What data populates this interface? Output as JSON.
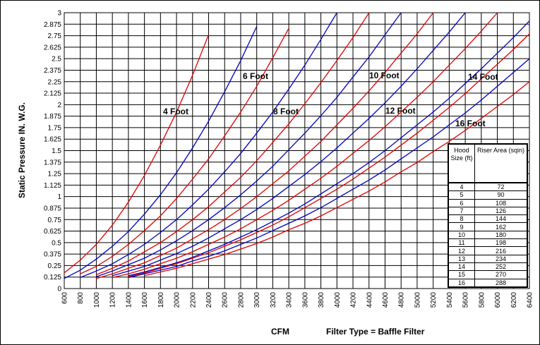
{
  "chart_data": {
    "type": "line",
    "ylabel": "Static Pressure IN. W.G.",
    "xlabel": "CFM",
    "subtitle": "Filter Type = Baffle Filter",
    "x": [
      600,
      800,
      1000,
      1200,
      1400,
      1600,
      1800,
      2000,
      2200,
      2400,
      2600,
      2800,
      3000,
      3200,
      3400,
      3600,
      3800,
      4000,
      4200,
      4400,
      4600,
      4800,
      5000,
      5200,
      5400,
      5600,
      5800,
      6000,
      6200,
      6400
    ],
    "xlim": [
      600,
      6400
    ],
    "xticks": [
      600,
      800,
      1000,
      1200,
      1400,
      1600,
      1800,
      2000,
      2200,
      2400,
      2600,
      2800,
      3000,
      3200,
      3400,
      3600,
      3800,
      4000,
      4200,
      4400,
      4600,
      4800,
      5000,
      5200,
      5400,
      5600,
      5800,
      6000,
      6200,
      6400
    ],
    "ylim": [
      0,
      3
    ],
    "yticks": [
      0,
      0.125,
      0.25,
      0.375,
      0.5,
      0.625,
      0.75,
      0.875,
      1,
      1.125,
      1.25,
      1.375,
      1.5,
      1.625,
      1.75,
      1.875,
      2,
      2.125,
      2.25,
      2.375,
      2.5,
      2.625,
      2.75,
      2.875,
      3
    ],
    "grid": true,
    "series": [
      {
        "color": "#e00000",
        "values": [
          0.17,
          0.31,
          0.48,
          0.69,
          0.94,
          1.23,
          1.56,
          1.92,
          2.32,
          2.76,
          null,
          null,
          null,
          null,
          null,
          null,
          null,
          null,
          null,
          null,
          null,
          null,
          null,
          null,
          null,
          null,
          null,
          null,
          null,
          null
        ]
      },
      {
        "color": "#0000c0",
        "values": [
          0.11,
          0.2,
          0.32,
          0.46,
          0.62,
          0.81,
          1.02,
          1.26,
          1.53,
          1.82,
          2.14,
          2.48,
          2.85,
          null,
          null,
          null,
          null,
          null,
          null,
          null,
          null,
          null,
          null,
          null,
          null,
          null,
          null,
          null,
          null,
          null
        ]
      },
      {
        "color": "#e00000",
        "values": [
          null,
          0.16,
          0.24,
          0.35,
          0.48,
          0.63,
          0.79,
          0.98,
          1.19,
          1.41,
          1.66,
          1.92,
          2.2,
          2.51,
          2.83,
          null,
          null,
          null,
          null,
          null,
          null,
          null,
          null,
          null,
          null,
          null,
          null,
          null,
          null,
          null
        ]
      },
      {
        "color": "#0000c0",
        "values": [
          null,
          0.12,
          0.19,
          0.27,
          0.37,
          0.48,
          0.61,
          0.75,
          0.91,
          1.08,
          1.27,
          1.47,
          1.69,
          1.92,
          2.17,
          2.43,
          2.71,
          3.0,
          null,
          null,
          null,
          null,
          null,
          null,
          null,
          null,
          null,
          null,
          null,
          null
        ]
      },
      {
        "color": "#e00000",
        "values": [
          null,
          null,
          0.15,
          0.22,
          0.3,
          0.4,
          0.5,
          0.62,
          0.75,
          0.89,
          1.05,
          1.21,
          1.39,
          1.59,
          1.79,
          2.01,
          2.24,
          2.48,
          2.73,
          3.0,
          null,
          null,
          null,
          null,
          null,
          null,
          null,
          null,
          null,
          null
        ]
      },
      {
        "color": "#0000c0",
        "values": [
          null,
          null,
          0.13,
          0.19,
          0.26,
          0.33,
          0.42,
          0.52,
          0.63,
          0.75,
          0.88,
          1.02,
          1.17,
          1.33,
          1.51,
          1.69,
          1.88,
          2.08,
          2.3,
          2.52,
          2.76,
          3.0,
          null,
          null,
          null,
          null,
          null,
          null,
          null,
          null
        ]
      },
      {
        "color": "#e00000",
        "values": [
          null,
          null,
          0.11,
          0.16,
          0.22,
          0.28,
          0.36,
          0.44,
          0.54,
          0.64,
          0.75,
          0.87,
          1.0,
          1.14,
          1.28,
          1.44,
          1.6,
          1.78,
          1.96,
          2.15,
          2.35,
          2.56,
          2.77,
          3.0,
          null,
          null,
          null,
          null,
          null,
          null
        ]
      },
      {
        "color": "#0000c0",
        "values": [
          null,
          null,
          null,
          0.14,
          0.19,
          0.24,
          0.31,
          0.38,
          0.46,
          0.55,
          0.65,
          0.75,
          0.86,
          0.98,
          1.11,
          1.24,
          1.38,
          1.53,
          1.69,
          1.85,
          2.02,
          2.2,
          2.39,
          2.59,
          2.79,
          3.0,
          null,
          null,
          null,
          null
        ]
      },
      {
        "color": "#e00000",
        "values": [
          null,
          null,
          null,
          0.12,
          0.16,
          0.21,
          0.27,
          0.33,
          0.4,
          0.48,
          0.56,
          0.65,
          0.75,
          0.85,
          0.96,
          1.08,
          1.2,
          1.33,
          1.47,
          1.61,
          1.76,
          1.92,
          2.08,
          2.25,
          2.43,
          2.61,
          2.8,
          3.0,
          null,
          null
        ]
      },
      {
        "color": "#0000c0",
        "values": [
          null,
          null,
          null,
          null,
          0.14,
          0.18,
          0.23,
          0.28,
          0.34,
          0.41,
          0.48,
          0.56,
          0.64,
          0.73,
          0.82,
          0.92,
          1.03,
          1.14,
          1.25,
          1.37,
          1.5,
          1.64,
          1.78,
          1.92,
          2.07,
          2.23,
          2.39,
          2.56,
          2.73,
          2.91
        ]
      },
      {
        "color": "#e00000",
        "values": [
          null,
          null,
          null,
          null,
          0.13,
          0.17,
          0.22,
          0.27,
          0.33,
          0.39,
          0.46,
          0.53,
          0.61,
          0.69,
          0.78,
          0.88,
          0.98,
          1.08,
          1.19,
          1.31,
          1.43,
          1.56,
          1.69,
          1.83,
          1.97,
          2.12,
          2.28,
          2.44,
          2.6,
          2.77
        ]
      },
      {
        "color": "#0000c0",
        "values": [
          null,
          null,
          null,
          null,
          0.12,
          0.16,
          0.2,
          0.24,
          0.3,
          0.35,
          0.41,
          0.48,
          0.55,
          0.63,
          0.71,
          0.79,
          0.88,
          0.98,
          1.08,
          1.18,
          1.29,
          1.41,
          1.53,
          1.65,
          1.78,
          1.91,
          2.05,
          2.2,
          2.35,
          2.5
        ]
      },
      {
        "color": "#e00000",
        "values": [
          null,
          null,
          null,
          null,
          null,
          0.14,
          0.18,
          0.22,
          0.27,
          0.32,
          0.37,
          0.43,
          0.49,
          0.56,
          0.64,
          0.71,
          0.79,
          0.88,
          0.97,
          1.06,
          1.16,
          1.27,
          1.37,
          1.49,
          1.6,
          1.72,
          1.85,
          1.98,
          2.11,
          2.25
        ]
      }
    ],
    "annotations": [
      "4 Foot",
      "6 Foot",
      "8 Foot",
      "10 Foot",
      "12 Foot",
      "14 Foot",
      "16 Foot"
    ],
    "table": {
      "header": [
        "Hood Size (ft)",
        "Riser Area (sqin)"
      ],
      "rows": [
        [
          4,
          72
        ],
        [
          5,
          90
        ],
        [
          6,
          108
        ],
        [
          7,
          126
        ],
        [
          8,
          144
        ],
        [
          9,
          162
        ],
        [
          10,
          180
        ],
        [
          11,
          198
        ],
        [
          12,
          216
        ],
        [
          13,
          234
        ],
        [
          14,
          252
        ],
        [
          15,
          270
        ],
        [
          16,
          288
        ]
      ]
    }
  }
}
